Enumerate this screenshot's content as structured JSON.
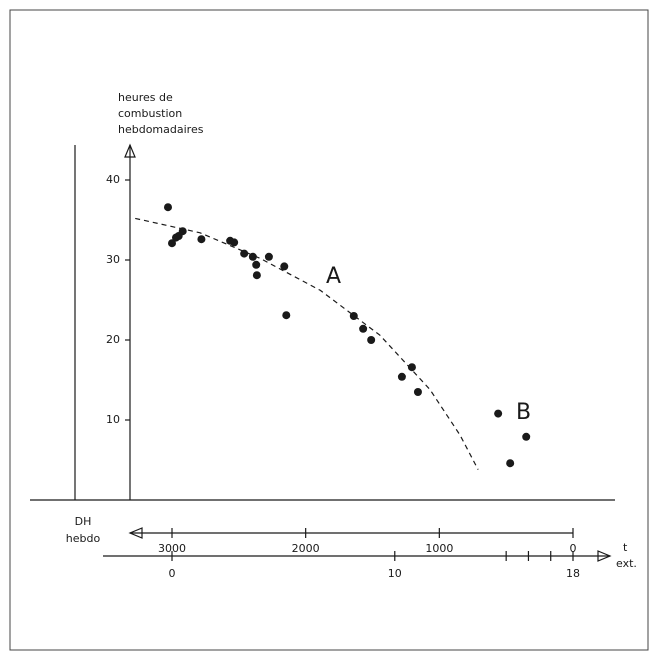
{
  "chart_data": {
    "type": "scatter",
    "y_label": [
      "heures de",
      "combustion",
      "hebdomadaires"
    ],
    "x_label": [
      "DH",
      "hebdo"
    ],
    "x2_label": [
      "t",
      "ext."
    ],
    "annotations": [
      "A",
      "B"
    ],
    "color": "#1a1a1a",
    "points": {
      "x": [
        3030,
        3000,
        2970,
        2950,
        2920,
        2780,
        2565,
        2535,
        2460,
        2395,
        2370,
        2365,
        2275,
        2160,
        2145,
        1640,
        1570,
        1510,
        1280,
        1205,
        1160,
        560,
        470,
        350
      ],
      "y": [
        36.6,
        32.1,
        32.8,
        33.0,
        33.6,
        32.6,
        32.4,
        32.2,
        30.8,
        30.4,
        29.4,
        28.1,
        30.4,
        29.2,
        23.1,
        23.0,
        21.4,
        20.0,
        15.4,
        16.6,
        13.5,
        10.8,
        4.6,
        7.9
      ]
    },
    "curve": {
      "x": [
        3275,
        2790,
        2340,
        1890,
        1445,
        1070,
        845,
        710
      ],
      "y": [
        35.2,
        33.4,
        30.2,
        26.2,
        20.6,
        13.8,
        8.1,
        3.8
      ]
    },
    "xlim": [
      3000,
      0
    ],
    "xticks": [
      3000,
      2000,
      1000,
      0
    ],
    "ylim": [
      0,
      40
    ],
    "yticks": [
      10,
      20,
      30,
      40
    ],
    "x2lim": [
      0,
      18
    ],
    "x2ticks": [
      0,
      10,
      18
    ],
    "x2minor": [
      15,
      16,
      17
    ]
  }
}
